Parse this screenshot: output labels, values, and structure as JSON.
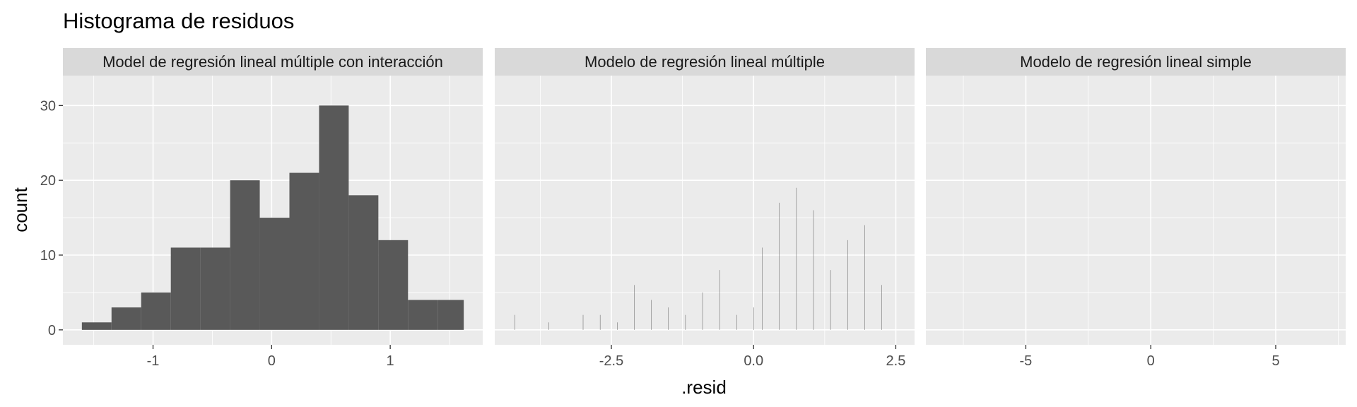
{
  "chart_data": {
    "type": "histogram",
    "title": "Histograma de residuos",
    "xlabel": ".resid",
    "ylabel": "count",
    "ylim": [
      -2,
      34
    ],
    "yticks": [
      0,
      10,
      20,
      30
    ],
    "colors": {
      "panel_bg": "#ebebeb",
      "strip_bg": "#d9d9d9",
      "bar": "#595959",
      "grid": "#ffffff"
    },
    "panels": [
      {
        "name": "Model de regresión lineal múltiple con interacción",
        "xlim": [
          -1.76,
          1.78
        ],
        "xticks": [
          -1,
          0,
          1
        ],
        "xtick_labels": [
          "-1",
          "0",
          "1"
        ],
        "bins": [
          [
            -1.6,
            -1.35,
            1
          ],
          [
            -1.35,
            -1.1,
            3
          ],
          [
            -1.1,
            -0.85,
            5
          ],
          [
            -0.85,
            -0.6,
            11
          ],
          [
            -0.6,
            -0.35,
            11
          ],
          [
            -0.35,
            -0.1,
            20
          ],
          [
            -0.1,
            0.15,
            15
          ],
          [
            0.15,
            0.4,
            21
          ],
          [
            0.4,
            0.65,
            30
          ],
          [
            0.65,
            0.9,
            18
          ],
          [
            0.9,
            1.15,
            12
          ],
          [
            1.15,
            1.4,
            4
          ],
          [
            1.4,
            1.62,
            4
          ]
        ]
      },
      {
        "name": "Modelo de regresión lineal múltiple",
        "xlim": [
          -4.55,
          2.83
        ],
        "xticks": [
          -2.5,
          0.0,
          2.5
        ],
        "xtick_labels": [
          "-2.5",
          "0.0",
          "2.5"
        ],
        "bins": [
          [
            -4.2,
            -4.2,
            2
          ],
          [
            -3.9,
            -3.9,
            0
          ],
          [
            -3.6,
            -3.6,
            1
          ],
          [
            -3.3,
            -3.3,
            0
          ],
          [
            -3.0,
            -3.0,
            2
          ],
          [
            -2.7,
            -2.7,
            2
          ],
          [
            -2.4,
            -2.4,
            1
          ],
          [
            -2.1,
            -2.1,
            6
          ],
          [
            -1.8,
            -1.8,
            4
          ],
          [
            -1.5,
            -1.5,
            3
          ],
          [
            -1.2,
            -1.2,
            2
          ],
          [
            -0.9,
            -0.9,
            5
          ],
          [
            -0.6,
            -0.6,
            8
          ],
          [
            -0.3,
            -0.3,
            2
          ],
          [
            0.0,
            0.0,
            3
          ],
          [
            0.15,
            0.15,
            11
          ],
          [
            0.45,
            0.45,
            17
          ],
          [
            0.75,
            0.75,
            19
          ],
          [
            1.05,
            1.05,
            16
          ],
          [
            1.35,
            1.35,
            8
          ],
          [
            1.65,
            1.65,
            12
          ],
          [
            1.95,
            1.95,
            14
          ],
          [
            2.25,
            2.25,
            6
          ]
        ]
      },
      {
        "name": "Modelo de regresión lineal simple",
        "xlim": [
          -9.0,
          7.8
        ],
        "xticks": [
          -5,
          0,
          5
        ],
        "xtick_labels": [
          "-5",
          "0",
          "5"
        ],
        "bins": []
      }
    ]
  }
}
